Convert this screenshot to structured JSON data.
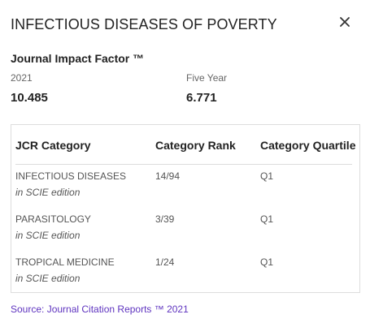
{
  "panel": {
    "title": "INFECTIOUS DISEASES OF POVERTY",
    "close_icon": "close-icon"
  },
  "impact_factor": {
    "heading": "Journal Impact Factor ™",
    "year_label": "2021",
    "year_value": "10.485",
    "five_year_label": "Five Year",
    "five_year_value": "6.771"
  },
  "jcr_table": {
    "headers": [
      "JCR Category",
      "Category Rank",
      "Category Quartile"
    ],
    "rows": [
      {
        "category": "INFECTIOUS DISEASES",
        "edition": "in SCIE edition",
        "rank": "14/94",
        "quartile": "Q1"
      },
      {
        "category": "PARASITOLOGY",
        "edition": "in SCIE edition",
        "rank": "3/39",
        "quartile": "Q1"
      },
      {
        "category": "TROPICAL MEDICINE",
        "edition": "in SCIE edition",
        "rank": "1/24",
        "quartile": "Q1"
      }
    ]
  },
  "source": {
    "text": "Source: Journal Citation Reports ™ 2021"
  },
  "colors": {
    "link": "#5e33bf",
    "border": "#dddddd",
    "heading_text": "#222222",
    "body_text": "#555555"
  }
}
